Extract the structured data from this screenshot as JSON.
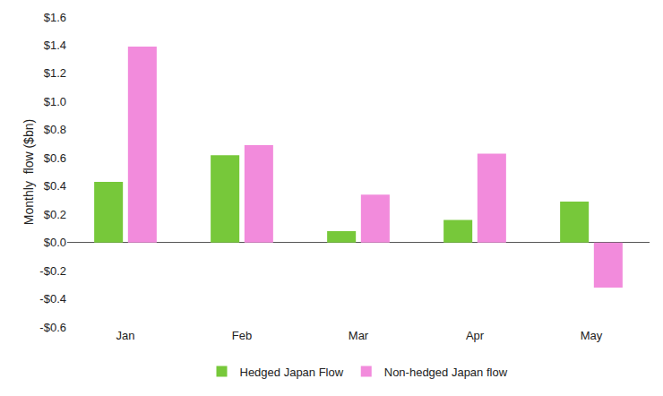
{
  "chart_data": {
    "type": "bar",
    "y_label": "Monthly  flow ($bn)",
    "categories": [
      "Jan",
      "Feb",
      "Mar",
      "Apr",
      "May"
    ],
    "series": [
      {
        "name": "Hedged Japan Flow",
        "color": "#77c83a",
        "values": [
          0.43,
          0.62,
          0.08,
          0.16,
          0.29
        ]
      },
      {
        "name": "Non-hedged Japan flow",
        "color": "#f28bdc",
        "values": [
          1.39,
          0.69,
          0.34,
          0.63,
          -0.32
        ]
      }
    ],
    "ylim": [
      -0.6,
      1.6
    ],
    "yticks": [
      {
        "value": -0.6,
        "label": "-$0.6"
      },
      {
        "value": -0.4,
        "label": "-$0.4"
      },
      {
        "value": -0.2,
        "label": "-$0.2"
      },
      {
        "value": 0,
        "label": "$0.0"
      },
      {
        "value": 0.2,
        "label": "$0.2"
      },
      {
        "value": 0.4,
        "label": "$0.4"
      },
      {
        "value": 0.6,
        "label": "$0.6"
      },
      {
        "value": 0.8,
        "label": "$0.8"
      },
      {
        "value": 1.0,
        "label": "$1.0"
      },
      {
        "value": 1.2,
        "label": "$1.2"
      },
      {
        "value": 1.4,
        "label": "$1.4"
      },
      {
        "value": 1.6,
        "label": "$1.6"
      }
    ],
    "grid": false,
    "legend": "bottom"
  }
}
